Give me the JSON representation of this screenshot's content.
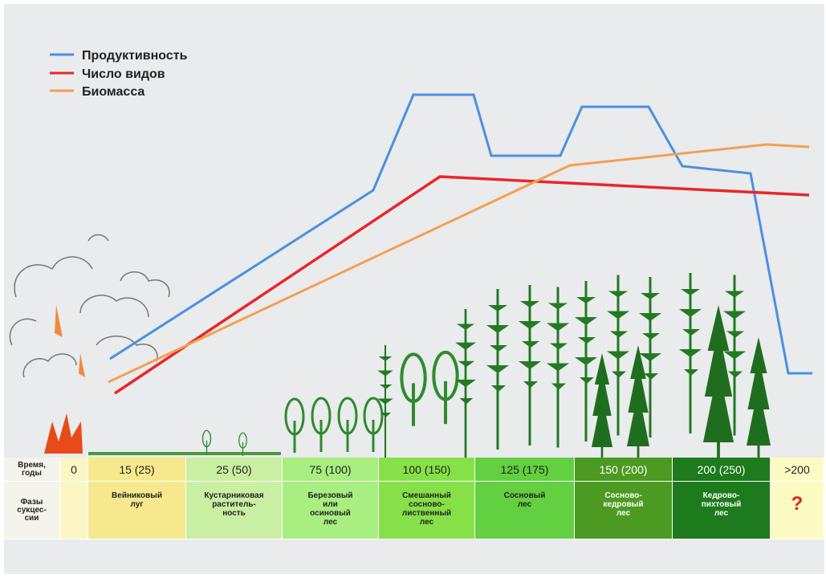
{
  "legend": [
    "Продуктивность",
    "Число видов",
    "Биомасса"
  ],
  "table": {
    "time_header": [
      "Время,",
      "годы"
    ],
    "phase_header": [
      "Фазы",
      "сукцес-",
      "сии"
    ],
    "columns": [
      {
        "time": "0"
      },
      {
        "time": "15 (25)",
        "phase": [
          "Вейниковый",
          "луг"
        ]
      },
      {
        "time": "25 (50)",
        "phase": [
          "Кустарниковая",
          "раститель-",
          "ность"
        ]
      },
      {
        "time": "75 (100)",
        "phase": [
          "Березовый",
          "или",
          "осиновый",
          "лес"
        ]
      },
      {
        "time": "100 (150)",
        "phase": [
          "Смешанный",
          "сосново-",
          "лиственный",
          "лес"
        ]
      },
      {
        "time": "125 (175)",
        "phase": [
          "Сосновый",
          "лес"
        ]
      },
      {
        "time": "150 (200)",
        "phase": [
          "Сосново-",
          "кедровый",
          "лес"
        ]
      },
      {
        "time": "200 (250)",
        "phase": [
          "Кедрово-",
          "пихтовый",
          "лес"
        ]
      },
      {
        "time": ">200",
        "phase": [
          "?"
        ]
      }
    ]
  }
}
